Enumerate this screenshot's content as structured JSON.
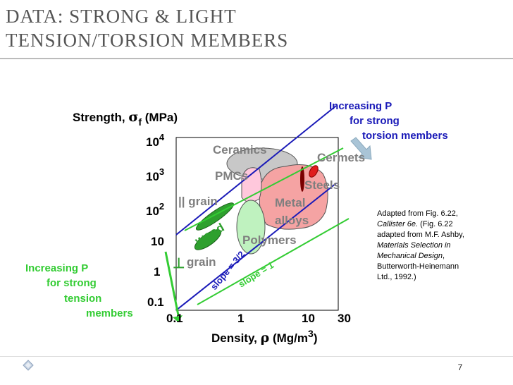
{
  "slide": {
    "title_line1": "DATA:  STRONG & LIGHT",
    "title_line2": "TENSION/TORSION MEMBERS",
    "page_number": "7",
    "nav_icon": "diamond-bullet-icon"
  },
  "chart": {
    "ylabel": {
      "text": "Strength, ",
      "symbol": "σ",
      "sub": "f",
      "units": " (MPa)"
    },
    "xlabel": {
      "text": "Density, ",
      "symbol": "ρ",
      "units": " (Mg/m",
      "sup": "3",
      "close": ")"
    },
    "y_ticks": [
      {
        "base": "10",
        "exp": "4"
      },
      {
        "base": "10",
        "exp": "3"
      },
      {
        "base": "10",
        "exp": "2"
      },
      {
        "base": "10",
        "exp": ""
      },
      {
        "base": "1",
        "exp": ""
      },
      {
        "base": "0.1",
        "exp": ""
      }
    ],
    "x_ticks": [
      "0.1",
      "1",
      "10",
      "30"
    ],
    "regions": {
      "ceramics": "Ceramics",
      "cermets": "Cermets",
      "pmcs": "PMCs",
      "steels": "Steels",
      "metal_1": "Metal",
      "metal_2": "alloys",
      "polymers": "Polymers",
      "wood": "wood",
      "parallel_grain": "|| grain",
      "perp_grain_symbol": "⊥",
      "perp_grain": "grain"
    },
    "slopes": {
      "torsion": "slope = 3/2",
      "tension": "slope = 1"
    },
    "annotation_torsion": {
      "line1": "Increasing P",
      "line2": "for strong",
      "line3": "torsion members"
    },
    "annotation_tension": {
      "line1": "Increasing P",
      "line2": "for strong",
      "line3": "tension",
      "line4": "members"
    },
    "colors": {
      "torsion": "#1a1ab8",
      "tension": "#33cc33",
      "region_text": "#7f7f7f",
      "ceramics_fill": "#c8c8c8",
      "metals_fill": "#f5a3a3",
      "pmcs_fill": "#ffc8dc",
      "polymers_fill": "#bff2bf",
      "wood_fill": "#2ea02e",
      "cermets_fill": "#e01c1c",
      "arrow_fill": "#a9c4d6"
    }
  },
  "caption": {
    "line1": "Adapted from Fig. 6.22,",
    "line2_italic": "Callister 6e.",
    "line2_rest": "  (Fig. 6.22",
    "line3": "adapted from M.F. Ashby,",
    "line4_italic": "Materials Selection in",
    "line5_italic": "Mechanical Design",
    "line5_rest": ",",
    "line6": "Butterworth-Heinemann",
    "line7": "Ltd., 1992.)"
  }
}
